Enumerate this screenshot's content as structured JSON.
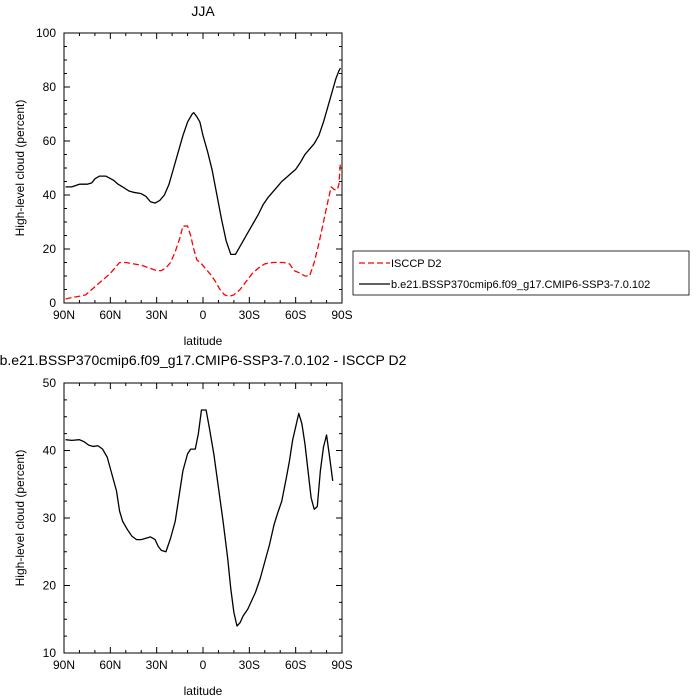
{
  "chart_data": [
    {
      "type": "line",
      "title": "JJA",
      "xlabel": "latitude",
      "ylabel": "High-level cloud (percent)",
      "xlim": [
        90,
        -90
      ],
      "ylim": [
        0,
        100
      ],
      "x_ticks": [
        90,
        60,
        30,
        0,
        -30,
        -60,
        -90
      ],
      "x_tick_labels": [
        "90N",
        "60N",
        "30N",
        "0",
        "30S",
        "60S",
        "90S"
      ],
      "y_ticks": [
        0,
        20,
        40,
        60,
        80,
        100
      ],
      "y_tick_labels": [
        "0",
        "20",
        "40",
        "60",
        "80",
        "100"
      ],
      "legend_position": "right",
      "series": [
        {
          "name": "ISCCP D2",
          "color": "#ff0000",
          "dash": "dashed",
          "points": [
            [
              89,
              1.5
            ],
            [
              85,
              2
            ],
            [
              80,
              2.5
            ],
            [
              76,
              3
            ],
            [
              72,
              5
            ],
            [
              68,
              7
            ],
            [
              64,
              9
            ],
            [
              60,
              11
            ],
            [
              57,
              13
            ],
            [
              54,
              15
            ],
            [
              50,
              15
            ],
            [
              45,
              14.5
            ],
            [
              40,
              14
            ],
            [
              35,
              13
            ],
            [
              30,
              12
            ],
            [
              27,
              12
            ],
            [
              24,
              13
            ],
            [
              21,
              15
            ],
            [
              18,
              19
            ],
            [
              15,
              24
            ],
            [
              13,
              28.5
            ],
            [
              10,
              28.5
            ],
            [
              8,
              25
            ],
            [
              6,
              20
            ],
            [
              4,
              16
            ],
            [
              1,
              14.5
            ],
            [
              -2,
              12.5
            ],
            [
              -5,
              10.5
            ],
            [
              -8,
              8
            ],
            [
              -11,
              5
            ],
            [
              -14,
              3
            ],
            [
              -17,
              2.5
            ],
            [
              -20,
              3
            ],
            [
              -24,
              5
            ],
            [
              -28,
              8
            ],
            [
              -32,
              11
            ],
            [
              -36,
              13
            ],
            [
              -40,
              14.5
            ],
            [
              -45,
              15
            ],
            [
              -52,
              15
            ],
            [
              -56,
              14.5
            ],
            [
              -59,
              12
            ],
            [
              -63,
              11
            ],
            [
              -66,
              10
            ],
            [
              -69,
              10
            ],
            [
              -72,
              15
            ],
            [
              -75,
              22
            ],
            [
              -78,
              30
            ],
            [
              -81,
              38
            ],
            [
              -83,
              43
            ],
            [
              -85,
              42
            ],
            [
              -87,
              42
            ],
            [
              -88,
              44
            ],
            [
              -89,
              52
            ]
          ]
        },
        {
          "name": "b.e21.BSSP370cmip6.f09_g17.CMIP6-SSP3-7.0.102",
          "color": "#000000",
          "dash": "solid",
          "points": [
            [
              89,
              43
            ],
            [
              85,
              43
            ],
            [
              80,
              44
            ],
            [
              75,
              44
            ],
            [
              72,
              44.5
            ],
            [
              70,
              46
            ],
            [
              67,
              47
            ],
            [
              63,
              47
            ],
            [
              58,
              45.5
            ],
            [
              55,
              44
            ],
            [
              52,
              43
            ],
            [
              48,
              41.5
            ],
            [
              45,
              41
            ],
            [
              40,
              40.5
            ],
            [
              37,
              39.5
            ],
            [
              34,
              37.5
            ],
            [
              31,
              37
            ],
            [
              28,
              38
            ],
            [
              25,
              40
            ],
            [
              22,
              44
            ],
            [
              19,
              50
            ],
            [
              16,
              56
            ],
            [
              13,
              62
            ],
            [
              10,
              67
            ],
            [
              7,
              70
            ],
            [
              6,
              70.5
            ],
            [
              4,
              69
            ],
            [
              2,
              67
            ],
            [
              0,
              62
            ],
            [
              -3,
              56
            ],
            [
              -6,
              49
            ],
            [
              -9,
              40
            ],
            [
              -12,
              31
            ],
            [
              -15,
              23
            ],
            [
              -18,
              18
            ],
            [
              -21,
              18
            ],
            [
              -24,
              21
            ],
            [
              -27,
              24
            ],
            [
              -30,
              27
            ],
            [
              -33,
              30
            ],
            [
              -36,
              33
            ],
            [
              -39,
              36.5
            ],
            [
              -42,
              39
            ],
            [
              -45,
              41
            ],
            [
              -48,
              43
            ],
            [
              -51,
              45
            ],
            [
              -54,
              46.5
            ],
            [
              -57,
              48
            ],
            [
              -60,
              49.5
            ],
            [
              -63,
              52
            ],
            [
              -66,
              55
            ],
            [
              -69,
              57
            ],
            [
              -72,
              59
            ],
            [
              -75,
              62
            ],
            [
              -78,
              67
            ],
            [
              -81,
              73
            ],
            [
              -84,
              79
            ],
            [
              -86,
              83
            ],
            [
              -88,
              86
            ],
            [
              -89,
              87
            ]
          ]
        }
      ]
    },
    {
      "type": "line",
      "title": "b.e21.BSSP370cmip6.f09_g17.CMIP6-SSP3-7.0.102 - ISCCP D2",
      "xlabel": "latitude",
      "ylabel": "High-level cloud (percent)",
      "xlim": [
        90,
        -90
      ],
      "ylim": [
        10,
        50
      ],
      "x_ticks": [
        90,
        60,
        30,
        0,
        -30,
        -60,
        -90
      ],
      "x_tick_labels": [
        "90N",
        "60N",
        "30N",
        "0",
        "30S",
        "60S",
        "90S"
      ],
      "y_ticks": [
        10,
        20,
        30,
        40,
        50
      ],
      "y_tick_labels": [
        "10",
        "20",
        "30",
        "40",
        "50"
      ],
      "series": [
        {
          "color": "#000000",
          "dash": "solid",
          "points": [
            [
              89,
              41.6
            ],
            [
              85,
              41.5
            ],
            [
              80,
              41.6
            ],
            [
              77,
              41.3
            ],
            [
              74,
              40.8
            ],
            [
              71,
              40.6
            ],
            [
              68,
              40.7
            ],
            [
              65,
              40.2
            ],
            [
              62,
              39
            ],
            [
              59,
              36.5
            ],
            [
              56,
              34
            ],
            [
              54,
              31
            ],
            [
              52,
              29.5
            ],
            [
              49,
              28.3
            ],
            [
              46,
              27.3
            ],
            [
              43,
              26.8
            ],
            [
              40,
              26.8
            ],
            [
              37,
              27
            ],
            [
              34,
              27.2
            ],
            [
              31,
              26.8
            ],
            [
              29,
              25.8
            ],
            [
              27,
              25.2
            ],
            [
              24,
              25
            ],
            [
              21,
              27
            ],
            [
              18,
              29.5
            ],
            [
              15,
              34
            ],
            [
              13,
              37
            ],
            [
              10,
              39.5
            ],
            [
              8,
              40.2
            ],
            [
              5,
              40.2
            ],
            [
              3,
              42.5
            ],
            [
              1,
              46
            ],
            [
              -2,
              46
            ],
            [
              -4,
              43.5
            ],
            [
              -7,
              39.5
            ],
            [
              -10,
              34.5
            ],
            [
              -13,
              29.5
            ],
            [
              -16,
              24
            ],
            [
              -18,
              19.5
            ],
            [
              -20,
              16
            ],
            [
              -22,
              14
            ],
            [
              -24,
              14.5
            ],
            [
              -26,
              15.5
            ],
            [
              -29,
              16.5
            ],
            [
              -31,
              17.5
            ],
            [
              -34,
              19
            ],
            [
              -37,
              21
            ],
            [
              -40,
              23.5
            ],
            [
              -43,
              26
            ],
            [
              -46,
              29
            ],
            [
              -48,
              30.5
            ],
            [
              -51,
              32.5
            ],
            [
              -54,
              36
            ],
            [
              -56,
              38.5
            ],
            [
              -58,
              41.5
            ],
            [
              -60,
              43.5
            ],
            [
              -62,
              45.5
            ],
            [
              -64,
              44
            ],
            [
              -66,
              41
            ],
            [
              -68,
              37
            ],
            [
              -70,
              33
            ],
            [
              -72,
              31.3
            ],
            [
              -74,
              31.7
            ],
            [
              -76,
              37
            ],
            [
              -78,
              40.5
            ],
            [
              -80,
              42.3
            ],
            [
              -82,
              39
            ],
            [
              -84,
              35.5
            ]
          ]
        }
      ]
    }
  ]
}
